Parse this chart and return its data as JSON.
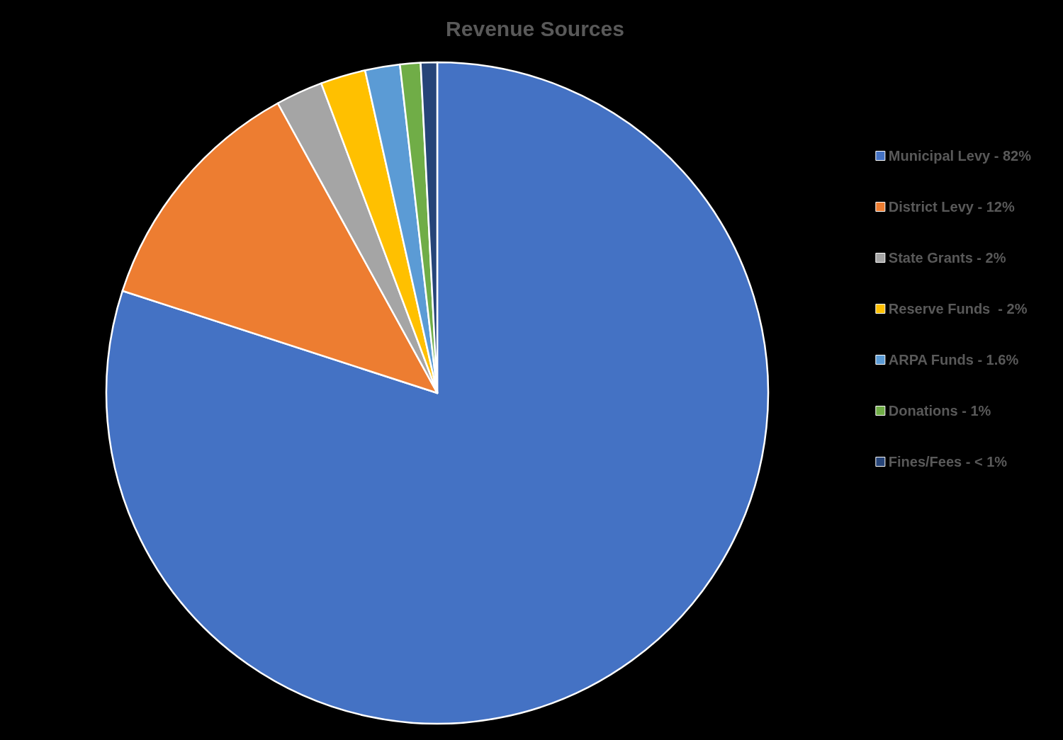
{
  "chart_data": {
    "type": "pie",
    "title": "Revenue Sources",
    "categories": [
      "Municipal Levy - 82%",
      "District Levy - 12%",
      "State Grants - 2%",
      "Reserve Funds  - 2%",
      "ARPA Funds - 1.6%",
      "Donations - 1%",
      "Fines/Fees - < 1%"
    ],
    "values": [
      80,
      12,
      2.3,
      2.2,
      1.7,
      1,
      0.8
    ],
    "colors": [
      "#4472c4",
      "#ed7d31",
      "#a5a5a5",
      "#ffc000",
      "#5b9bd5",
      "#70ad47",
      "#264478"
    ],
    "legend": "right"
  }
}
